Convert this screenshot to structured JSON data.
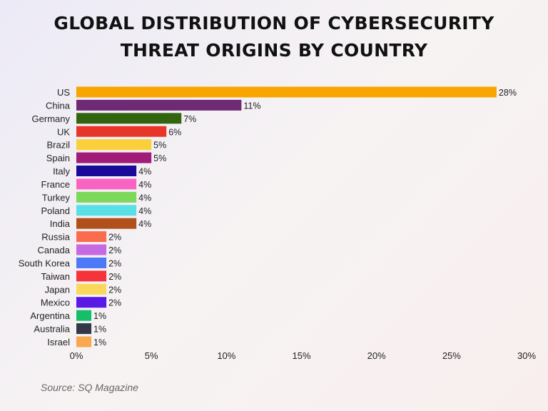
{
  "chart_data": {
    "type": "bar",
    "orientation": "horizontal",
    "title": "GLOBAL DISTRIBUTION OF CYBERSECURITY THREAT ORIGINS BY COUNTRY",
    "title_lines": [
      "GLOBAL DISTRIBUTION OF CYBERSECURITY",
      "THREAT ORIGINS BY COUNTRY"
    ],
    "categories": [
      "US",
      "China",
      "Germany",
      "UK",
      "Brazil",
      "Spain",
      "Italy",
      "France",
      "Turkey",
      "Poland",
      "India",
      "Russia",
      "Canada",
      "South Korea",
      "Taiwan",
      "Japan",
      "Mexico",
      "Argentina",
      "Australia",
      "Israel"
    ],
    "values": [
      28,
      11,
      7,
      6,
      5,
      5,
      4,
      4,
      4,
      4,
      4,
      2,
      2,
      2,
      2,
      2,
      2,
      1,
      1,
      1
    ],
    "colors": [
      "#f8a500",
      "#6e2a74",
      "#33640f",
      "#e8352a",
      "#fbcf3a",
      "#a01c78",
      "#1a0a9a",
      "#f964c4",
      "#7cd95a",
      "#58e0e6",
      "#b0501a",
      "#fb6b4e",
      "#c56ae0",
      "#4d78f6",
      "#f5333a",
      "#fbd85c",
      "#5a1ae6",
      "#15bf6a",
      "#323848",
      "#f8a84e"
    ],
    "value_labels": [
      "28%",
      "11%",
      "7%",
      "6%",
      "5%",
      "5%",
      "4%",
      "4%",
      "4%",
      "4%",
      "4%",
      "2%",
      "2%",
      "2%",
      "2%",
      "2%",
      "2%",
      "1%",
      "1%",
      "1%"
    ],
    "xlim": [
      0,
      30
    ],
    "xticks": [
      0,
      5,
      10,
      15,
      20,
      25,
      30
    ],
    "xtick_labels": [
      "0%",
      "5%",
      "10%",
      "15%",
      "20%",
      "25%",
      "30%"
    ],
    "xlabel": "",
    "ylabel": "",
    "grid": false,
    "legend": "none"
  },
  "source": "Source: SQ Magazine"
}
